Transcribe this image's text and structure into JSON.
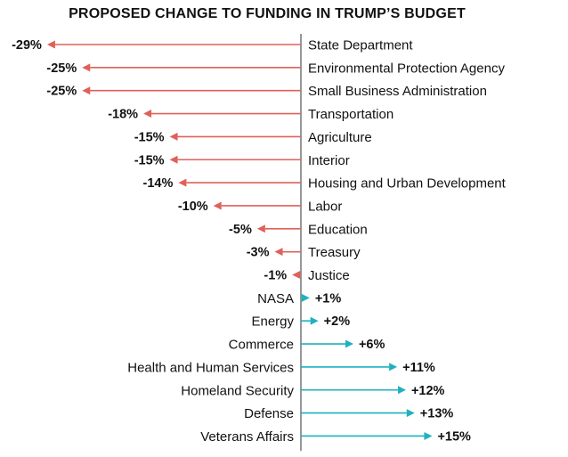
{
  "chart_data": {
    "type": "bar",
    "orientation": "horizontal",
    "title": "PROPOSED CHANGE TO FUNDING IN TRUMP’S BUDGET",
    "unit": "%",
    "xlim": [
      -29,
      15
    ],
    "categories": [
      "State Department",
      "Environmental Protection Agency",
      "Small Business Administration",
      "Transportation",
      "Agriculture",
      "Interior",
      "Housing and Urban Development",
      "Labor",
      "Education",
      "Treasury",
      "Justice",
      "NASA",
      "Energy",
      "Commerce",
      "Health and Human Services",
      "Homeland Security",
      "Defense",
      "Veterans Affairs"
    ],
    "values": [
      -29,
      -25,
      -25,
      -18,
      -15,
      -15,
      -14,
      -10,
      -5,
      -3,
      -1,
      1,
      2,
      6,
      11,
      12,
      13,
      15
    ],
    "value_labels": [
      "-29%",
      "-25%",
      "-25%",
      "-18%",
      "-15%",
      "-15%",
      "-14%",
      "-10%",
      "-5%",
      "-3%",
      "-1%",
      "+1%",
      "+2%",
      "+6%",
      "+11%",
      "+12%",
      "+13%",
      "+15%"
    ],
    "colors": {
      "negative": "#e0605a",
      "positive": "#1fb1be",
      "axis": "#555555",
      "text": "#111111"
    }
  }
}
